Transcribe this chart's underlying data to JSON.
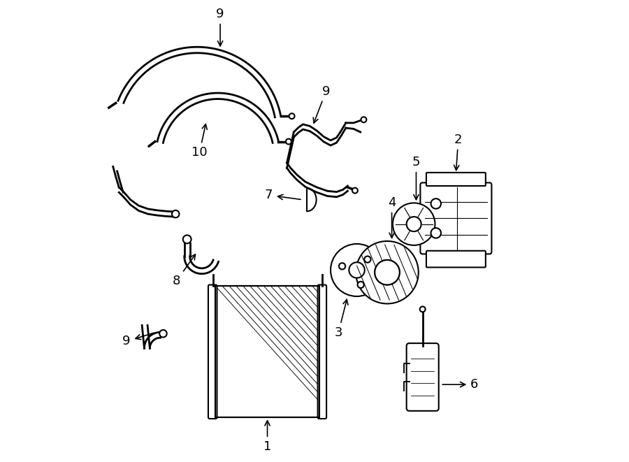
{
  "bg_color": "#ffffff",
  "line_color": "#000000",
  "line_width": 1.5,
  "fig_width": 9.0,
  "fig_height": 6.61
}
